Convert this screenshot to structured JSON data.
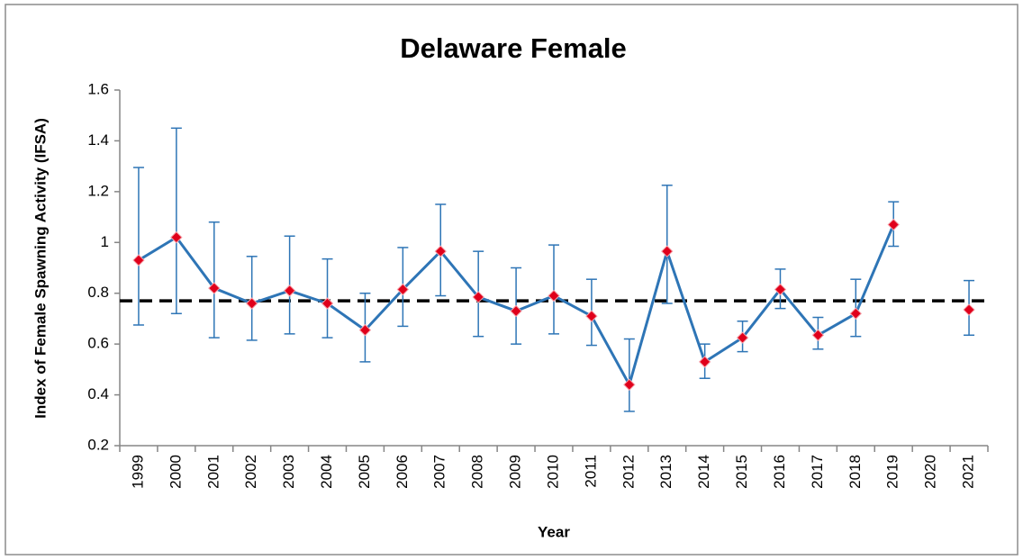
{
  "chart_data": {
    "type": "line",
    "title": "Delaware Female",
    "x_label": "Year",
    "y_label": "Index of Female Spawning Activity (IFSA)",
    "categories": [
      "1999",
      "2000",
      "2001",
      "2002",
      "2003",
      "2004",
      "2005",
      "2006",
      "2007",
      "2008",
      "2009",
      "2010",
      "2011",
      "2012",
      "2013",
      "2014",
      "2015",
      "2016",
      "2017",
      "2018",
      "2019",
      "2020",
      "2021"
    ],
    "series": [
      {
        "color": "#2e75b6",
        "marker_color": "#e0001b",
        "values": [
          0.93,
          1.02,
          0.82,
          0.76,
          0.81,
          0.76,
          0.655,
          0.815,
          0.965,
          0.785,
          0.73,
          0.79,
          0.71,
          0.44,
          0.965,
          0.53,
          0.625,
          0.815,
          0.635,
          0.72,
          1.07,
          null,
          0.735
        ],
        "upper": [
          1.295,
          1.45,
          1.08,
          0.945,
          1.025,
          0.935,
          0.8,
          0.98,
          1.15,
          0.965,
          0.9,
          0.99,
          0.855,
          0.62,
          1.225,
          0.6,
          0.69,
          0.895,
          0.705,
          0.855,
          1.16,
          null,
          0.85
        ],
        "lower": [
          0.675,
          0.72,
          0.625,
          0.615,
          0.64,
          0.625,
          0.53,
          0.67,
          0.79,
          0.63,
          0.6,
          0.64,
          0.595,
          0.335,
          0.76,
          0.465,
          0.57,
          0.74,
          0.58,
          0.63,
          0.985,
          null,
          0.635
        ]
      }
    ],
    "reference_line": {
      "value": 0.77,
      "color": "#000000"
    },
    "ylim": [
      0.2,
      1.6
    ],
    "yticks": [
      0.2,
      0.4,
      0.6,
      0.8,
      1,
      1.2,
      1.4,
      1.6
    ],
    "grid": false
  }
}
